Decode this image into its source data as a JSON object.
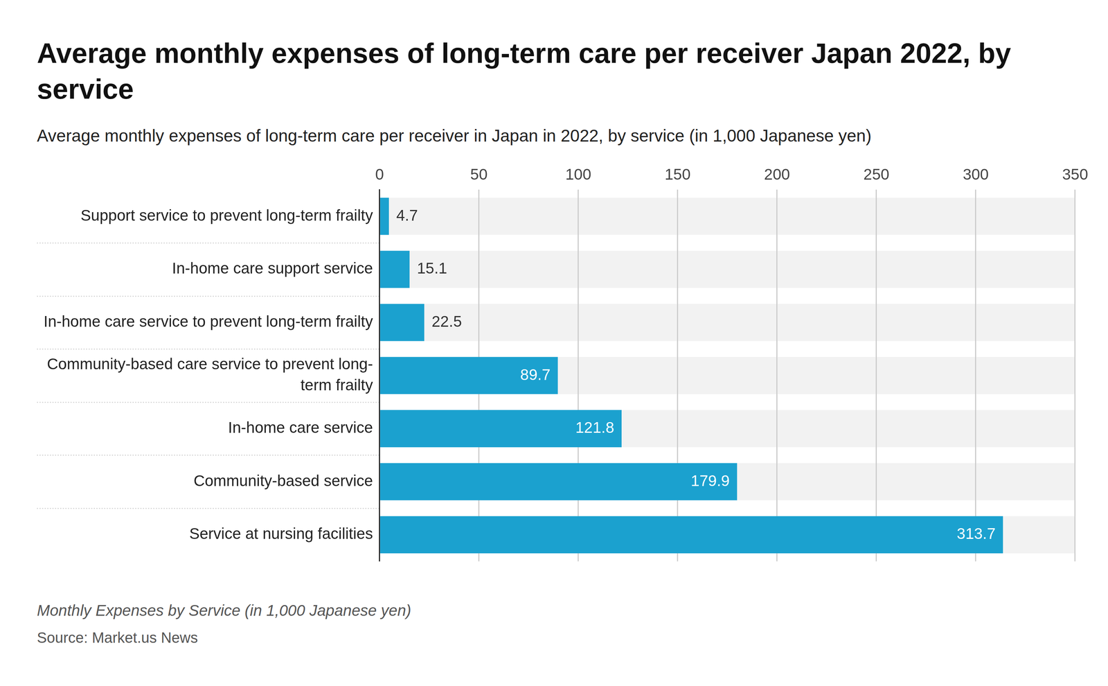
{
  "chart_data": {
    "type": "bar",
    "orientation": "horizontal",
    "title": "Average monthly expenses of long-term care per receiver Japan 2022, by service",
    "subtitle": "Average monthly expenses of long-term care per receiver in Japan in 2022, by service (in 1,000 Japanese yen)",
    "caption": "Monthly Expenses by Service (in 1,000 Japanese yen)",
    "source": "Source: Market.us News",
    "categories": [
      "Support service to prevent long-term frailty",
      "In-home care support service",
      "In-home care service to prevent long-term frailty",
      "Community-based care service to prevent long-term frailty",
      "In-home care service",
      "Community-based service",
      "Service at nursing facilities"
    ],
    "values": [
      4.7,
      15.1,
      22.5,
      89.7,
      121.8,
      179.9,
      313.7
    ],
    "color": "#1ba1cf",
    "xlim": [
      0,
      350
    ],
    "xticks": [
      0,
      50,
      100,
      150,
      200,
      250,
      300,
      350
    ],
    "grid": true,
    "data_labels": true
  }
}
